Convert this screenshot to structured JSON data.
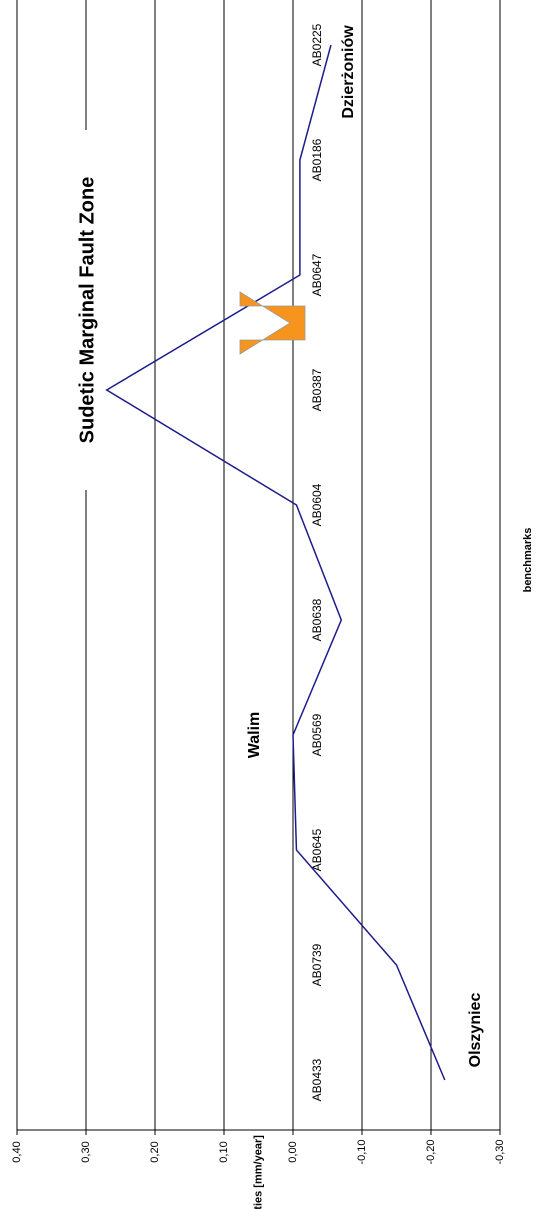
{
  "chart_data": {
    "type": "line",
    "x_label": "benchmarks",
    "y_label": "velocities [mm/year]",
    "categories": [
      "AB0433",
      "AB0739",
      "AB0645",
      "AB0569",
      "AB0638",
      "AB0604",
      "AB0387",
      "AB0647",
      "AB0186",
      "AB0225"
    ],
    "series": [
      {
        "name": "velocities",
        "color": "#1c1c8c",
        "values": [
          -0.22,
          -0.15,
          -0.005,
          0.0,
          -0.07,
          -0.005,
          0.27,
          -0.01,
          -0.01,
          -0.055
        ]
      }
    ],
    "ylim": [
      -0.3,
      0.4
    ],
    "yticks": [
      {
        "value": -0.3,
        "label": "-0,30"
      },
      {
        "value": -0.2,
        "label": "-0,20"
      },
      {
        "value": -0.1,
        "label": "-0,10"
      },
      {
        "value": 0,
        "label": "0,00"
      },
      {
        "value": 0.1,
        "label": "0,10"
      },
      {
        "value": 0.2,
        "label": "0,20"
      },
      {
        "value": 0.3,
        "label": "0,30"
      },
      {
        "value": 0.4,
        "label": "0,40"
      }
    ],
    "grid": true,
    "annotations": [
      "Sudetic Marginal Fault Zone",
      "Walim",
      "Olszyniec",
      "Dzierżoniów"
    ],
    "arrow_color": "#f7941d"
  }
}
